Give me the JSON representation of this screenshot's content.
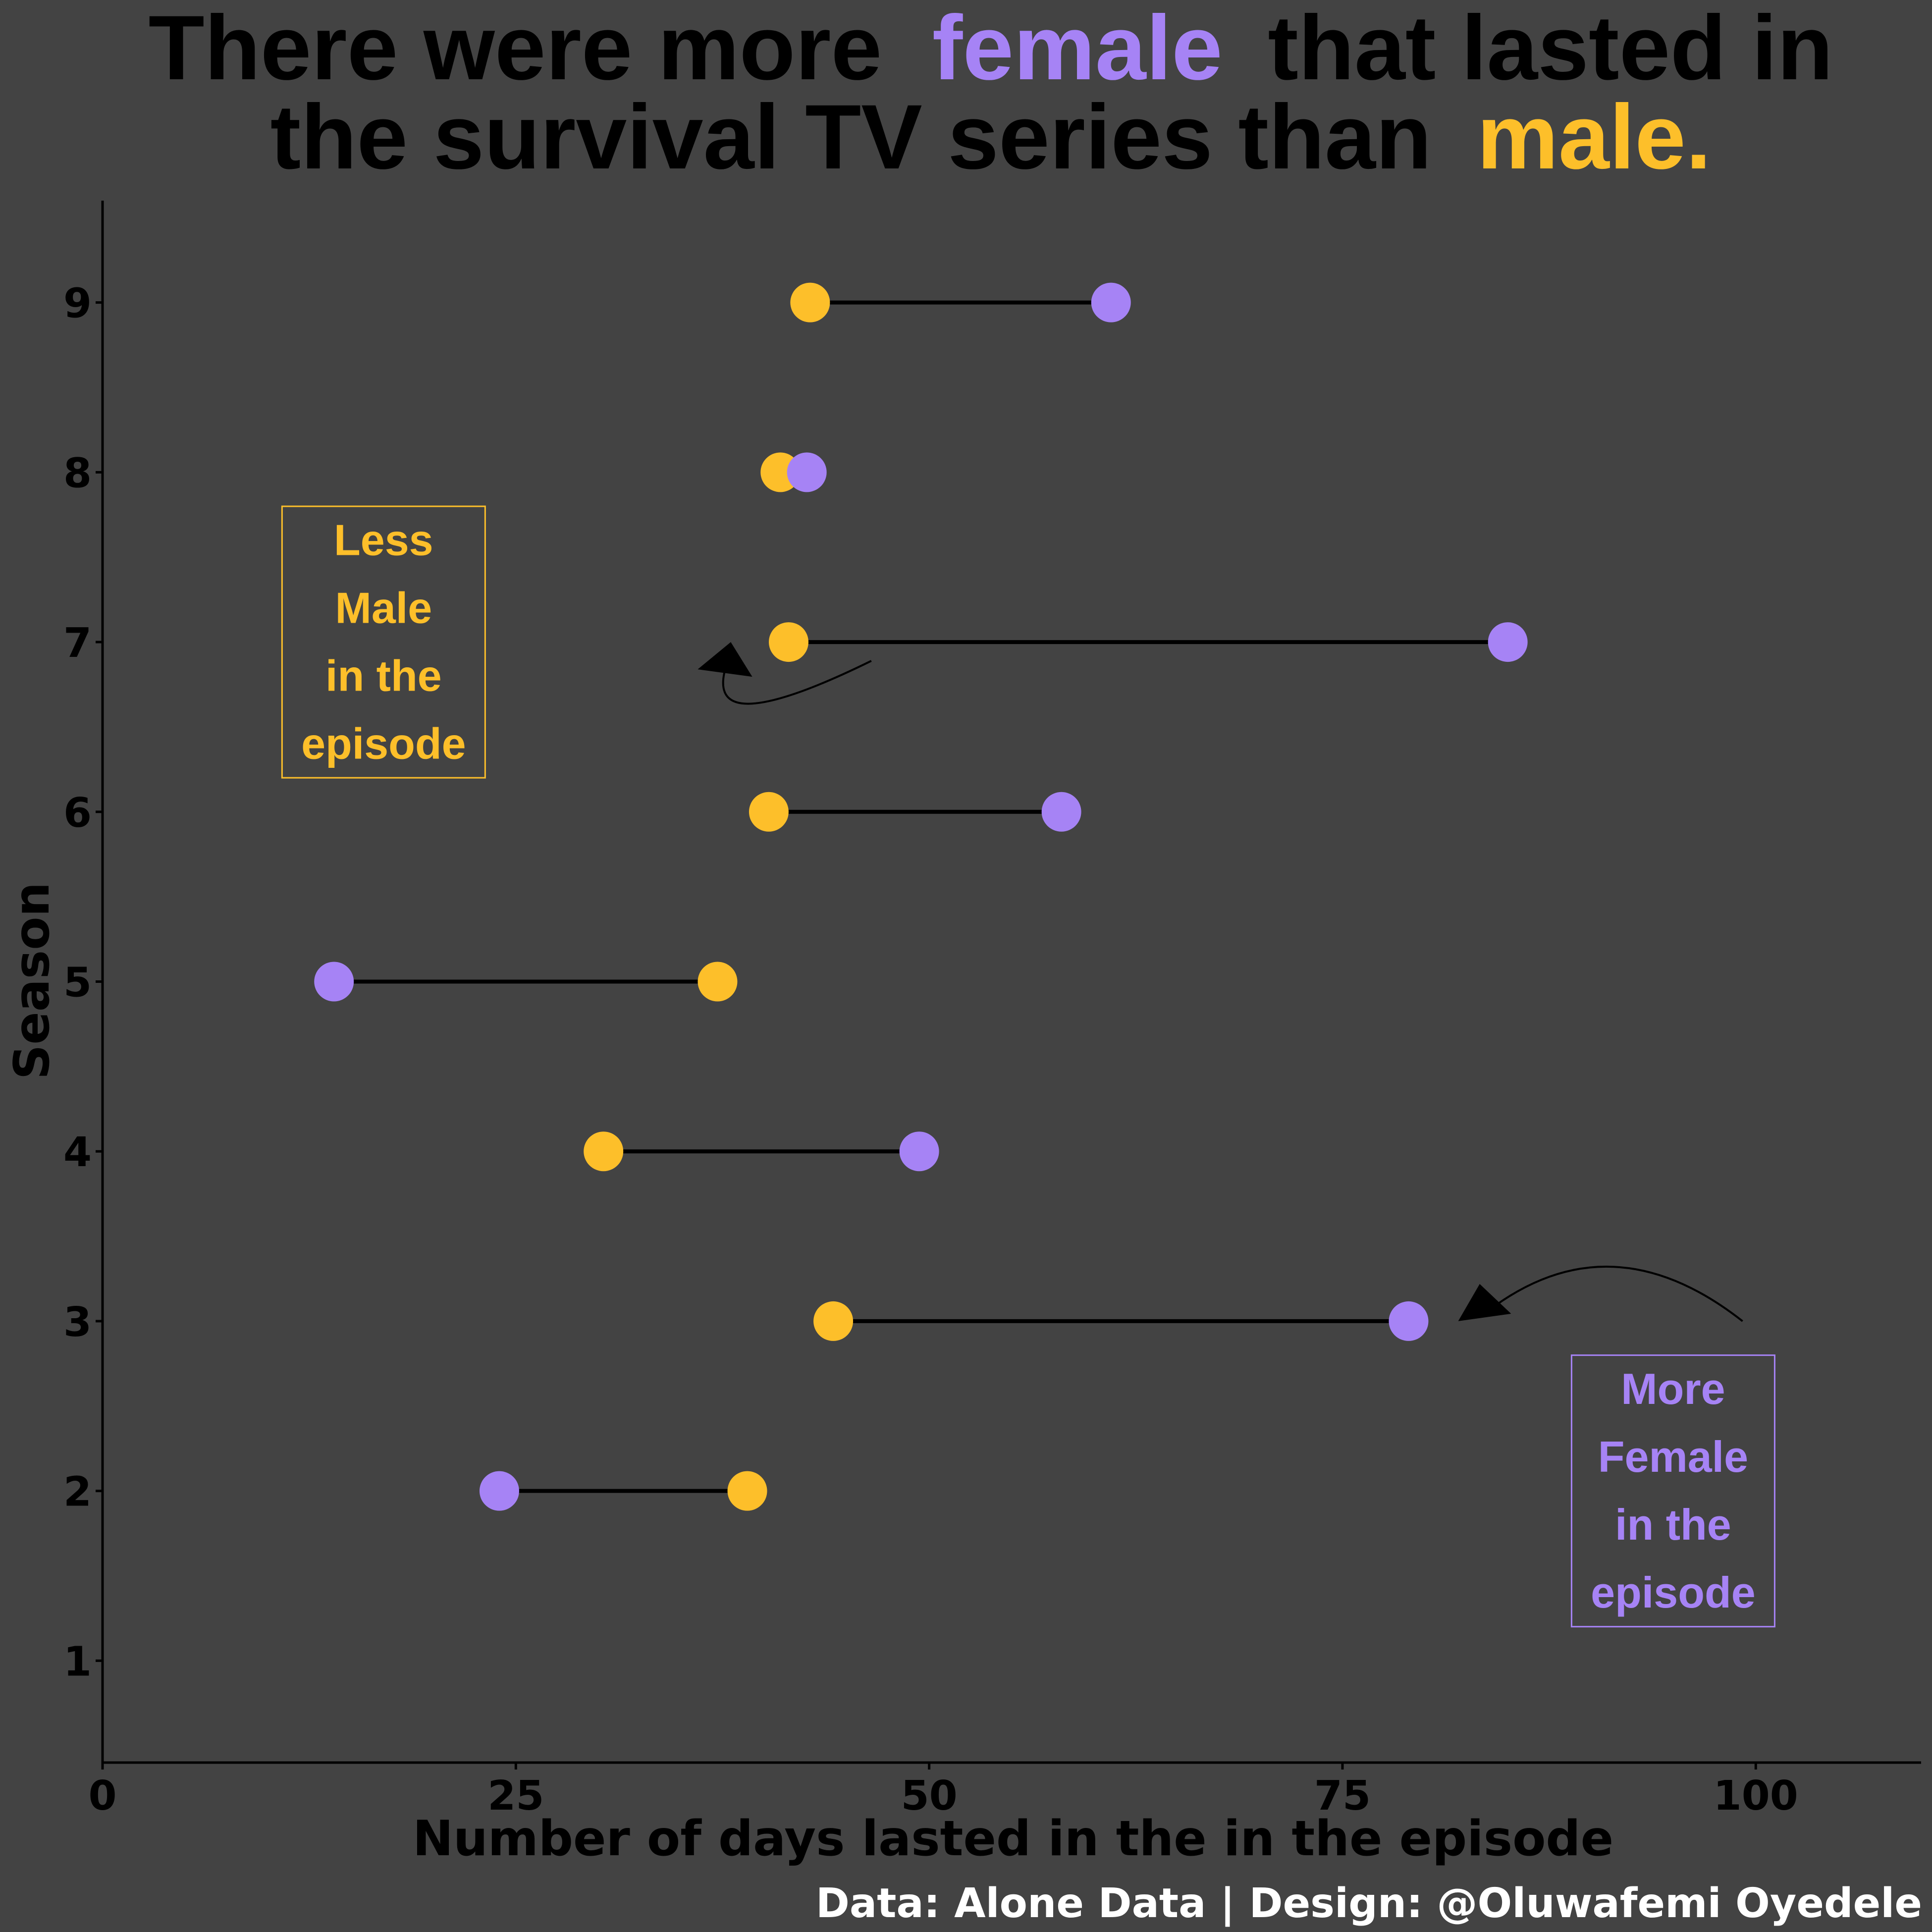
{
  "title": {
    "line1_a": "There were more",
    "line1_b": "female",
    "line1_c": "that lasted in",
    "line2_a": "the survival TV series than",
    "line2_b": "male."
  },
  "caption": "Data: Alone Data | Design: @Oluwafemi Oyedele",
  "colors": {
    "background": "#434343",
    "female": "#a683f5",
    "male": "#fdbf2a",
    "text": "#000000",
    "caption": "#ffffff"
  },
  "chart_data": {
    "type": "dumbbell",
    "title": "There were more female that lasted in the survival TV series than male.",
    "xlabel": "Number of days lasted in the in the episode",
    "ylabel": "Season",
    "xlim": [
      0,
      110
    ],
    "ylim": [
      0.4,
      9.6
    ],
    "xticks": [
      0,
      25,
      50,
      75,
      100
    ],
    "yticks": [
      1,
      2,
      3,
      4,
      5,
      6,
      7,
      8,
      9
    ],
    "grid": false,
    "series": [
      {
        "name": "female",
        "color": "#a683f5"
      },
      {
        "name": "male",
        "color": "#fdbf2a"
      }
    ],
    "rows": [
      {
        "season": 9,
        "male": 42.8,
        "female": 61.0
      },
      {
        "season": 8,
        "male": 41.0,
        "female": 42.6
      },
      {
        "season": 7,
        "male": 41.5,
        "female": 85.0
      },
      {
        "season": 6,
        "male": 40.3,
        "female": 58.0
      },
      {
        "season": 5,
        "male": 37.2,
        "female": 14.0
      },
      {
        "season": 4,
        "male": 30.3,
        "female": 49.4
      },
      {
        "season": 3,
        "male": 44.2,
        "female": 79.0
      },
      {
        "season": 2,
        "male": 39.0,
        "female": 24.0
      }
    ],
    "annotations": [
      {
        "lines": [
          "Less",
          "Male",
          "in the",
          "episode"
        ],
        "color": "#fdbf2a",
        "x": 17,
        "y": 7.0
      },
      {
        "lines": [
          "More",
          "Female",
          "in the",
          "episode"
        ],
        "color": "#a683f5",
        "x": 95,
        "y": 2.0
      }
    ]
  }
}
